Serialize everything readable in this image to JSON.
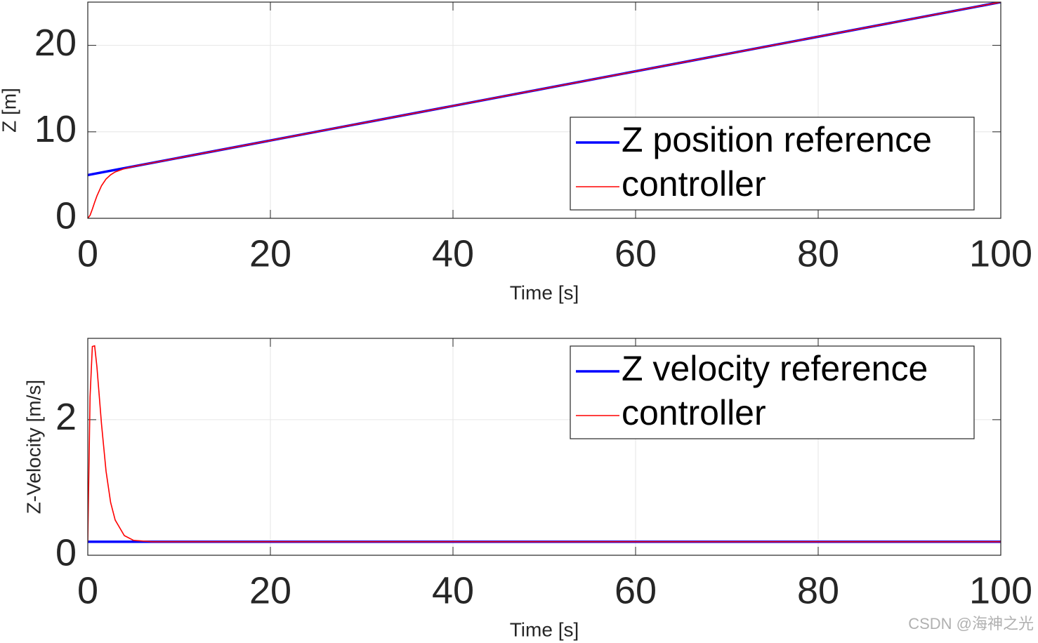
{
  "chart_data": [
    {
      "type": "line",
      "xlabel": "Time [s]",
      "ylabel": "Z [m]",
      "xlim": [
        0,
        100
      ],
      "xticks": [
        0,
        20,
        40,
        60,
        80,
        100
      ],
      "ylim": [
        0,
        25
      ],
      "yticks": [
        0,
        10,
        20
      ],
      "grid": true,
      "legend": "southeast",
      "series": [
        {
          "name": "Z position reference",
          "color": "#0000ff",
          "x": [
            0,
            100
          ],
          "values": [
            5,
            25
          ]
        },
        {
          "name": "controller",
          "color": "#ff0000",
          "x": [
            0,
            0.25,
            0.5,
            0.75,
            1,
            1.5,
            2,
            2.5,
            3,
            4,
            5,
            6,
            100
          ],
          "values": [
            0,
            0.35,
            1.06,
            1.85,
            2.58,
            3.76,
            4.54,
            5.03,
            5.36,
            5.74,
            5.99,
            6.2,
            25
          ]
        }
      ]
    },
    {
      "type": "line",
      "xlabel": "Time [s]",
      "ylabel": "Z-Velocity [m/s]",
      "xlim": [
        0,
        100
      ],
      "xticks": [
        0,
        20,
        40,
        60,
        80,
        100
      ],
      "ylim": [
        0,
        3.2
      ],
      "yticks": [
        0,
        2
      ],
      "grid": true,
      "legend": "northeast",
      "series": [
        {
          "name": "Z velocity reference",
          "color": "#0000ff",
          "x": [
            0,
            100
          ],
          "values": [
            0.2,
            0.2
          ]
        },
        {
          "name": "controller",
          "color": "#ff0000",
          "x": [
            0,
            0.25,
            0.5,
            0.75,
            1,
            1.5,
            2,
            2.5,
            3,
            4,
            5,
            7,
            100
          ],
          "values": [
            0.2,
            2.34,
            3.08,
            3.09,
            2.78,
            1.94,
            1.24,
            0.78,
            0.52,
            0.29,
            0.22,
            0.2,
            0.2
          ]
        }
      ]
    }
  ],
  "watermark": "CSDN @海神之光"
}
